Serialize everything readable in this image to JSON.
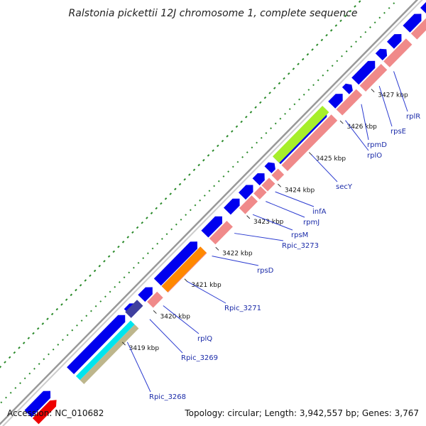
{
  "title": "Ralstonia pickettii 12J chromosome 1, complete sequence",
  "footer": {
    "accession": "Accession: NC_010682",
    "summary": "Topology: circular; Length: 3,942,557 bp; Genes: 3,767"
  },
  "scale_ticks": [
    {
      "label": "3419 kbp",
      "kbp": 3419
    },
    {
      "label": "3420 kbp",
      "kbp": 3420
    },
    {
      "label": "3421 kbp",
      "kbp": 3421
    },
    {
      "label": "3422 kbp",
      "kbp": 3422
    },
    {
      "label": "3423 kbp",
      "kbp": 3423
    },
    {
      "label": "3424 kbp",
      "kbp": 3424
    },
    {
      "label": "3425 kbp",
      "kbp": 3425
    },
    {
      "label": "3426 kbp",
      "kbp": 3426
    },
    {
      "label": "3427 kbp",
      "kbp": 3427
    }
  ],
  "gene_labels": [
    "Rpic_3268",
    "Rpic_3269",
    "rplQ",
    "Rpic_3271",
    "rpsD",
    "Rpic_3273",
    "rpsM",
    "rpmJ",
    "infA",
    "secY",
    "rplO",
    "rpmD",
    "rpsE",
    "rplR"
  ],
  "colors": {
    "cds": "#0000ee",
    "gene": "#f08a8a",
    "rrna_like": "#a6ee2a",
    "orange_feature": "#ff8800",
    "cyan_feature": "#00e5ee",
    "khaki_feature": "#bdb68c",
    "navy_feature": "#3f3f9f",
    "red_feature": "#ee0000",
    "backbone": "#aaaaaa",
    "gc_dots": "#2a8a2a",
    "label": "#1a2aa8"
  }
}
